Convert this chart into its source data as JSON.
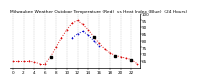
{
  "title": "Milwaukee Weather Outdoor Temperature (Red)  vs Heat Index (Blue)  (24 Hours)",
  "hours": [
    0,
    1,
    2,
    3,
    4,
    5,
    6,
    7,
    8,
    9,
    10,
    11,
    12,
    13,
    14,
    15,
    16,
    17,
    18,
    19,
    20,
    21,
    22,
    23
  ],
  "temp_red": [
    65,
    65,
    65,
    65,
    64,
    63,
    63,
    68,
    75,
    82,
    88,
    93,
    95,
    92,
    88,
    83,
    78,
    74,
    71,
    69,
    68,
    67,
    66,
    63
  ],
  "heat_blue": [
    null,
    null,
    null,
    null,
    null,
    null,
    null,
    null,
    null,
    null,
    null,
    82,
    85,
    87,
    84,
    80,
    76,
    null,
    null,
    null,
    null,
    null,
    null,
    null
  ],
  "ylim": [
    60,
    100
  ],
  "yticks": [
    65,
    70,
    75,
    80,
    85,
    90,
    95,
    100
  ],
  "xticks": [
    0,
    2,
    4,
    6,
    8,
    10,
    12,
    14,
    16,
    18,
    20,
    22
  ],
  "red_color": "#dd0000",
  "blue_color": "#0000cc",
  "bg_color": "#ffffff",
  "grid_color": "#999999",
  "title_fontsize": 3.2,
  "tick_fontsize": 3.0
}
